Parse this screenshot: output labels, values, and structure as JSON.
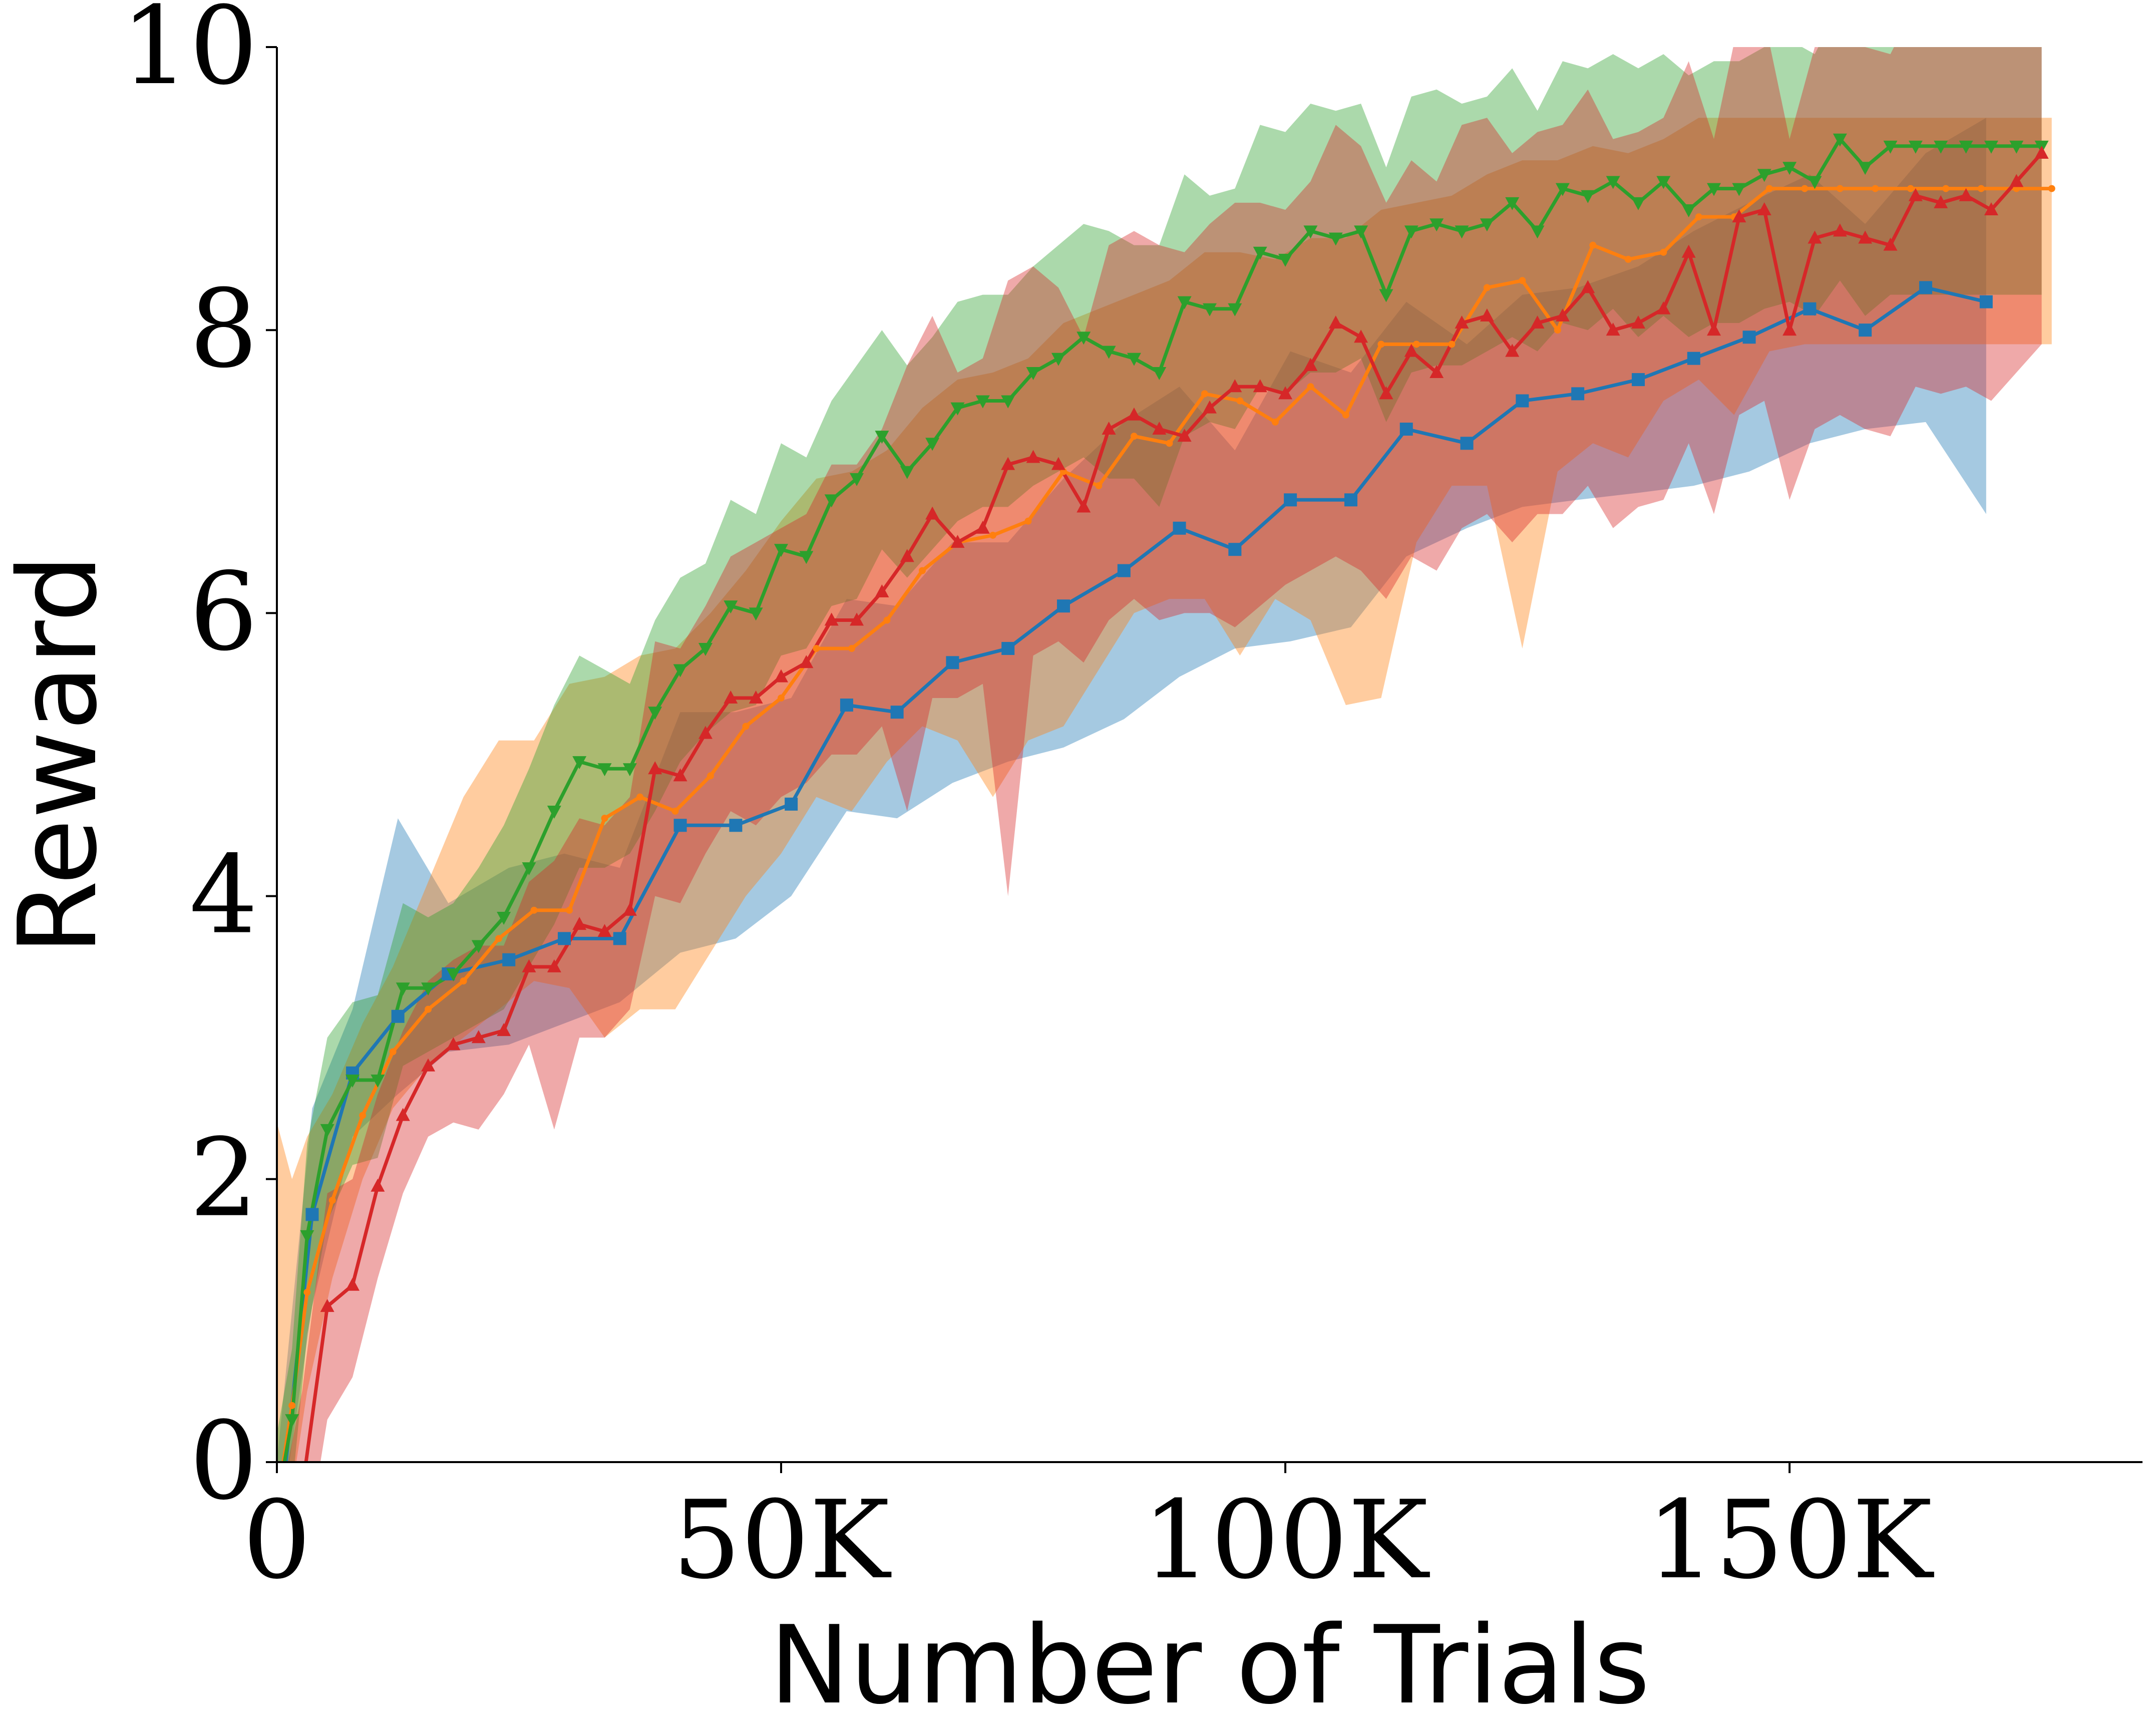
{
  "chart_data": {
    "type": "line",
    "title": "",
    "xlabel": "Number of Trials",
    "ylabel": "Reward",
    "xlim": [
      0,
      185000
    ],
    "ylim": [
      0,
      10
    ],
    "xticks": [
      0,
      50000,
      100000,
      150000
    ],
    "xtick_labels": [
      "0",
      "50K",
      "100K",
      "150K"
    ],
    "yticks": [
      0,
      2,
      4,
      6,
      8,
      10
    ],
    "ytick_labels": [
      "0",
      "2",
      "4",
      "6",
      "8",
      "10"
    ],
    "grid": false,
    "legend": "none",
    "series": [
      {
        "color": "#1f77b4",
        "marker": "square",
        "x": [
          0,
          3500,
          7500,
          12000,
          17000,
          23000,
          28500,
          34000,
          40000,
          45500,
          51000,
          56500,
          61500,
          67000,
          72500,
          78000,
          84000,
          89500,
          95000,
          100500,
          106500,
          112000,
          118000,
          123500,
          129000,
          135000,
          140500,
          146000,
          152000,
          157500,
          163500,
          169500
        ],
        "y": [
          -0.6,
          1.75,
          2.75,
          3.15,
          3.45,
          3.55,
          3.7,
          3.7,
          4.5,
          4.5,
          4.65,
          5.35,
          5.3,
          5.65,
          5.75,
          6.05,
          6.3,
          6.6,
          6.45,
          6.8,
          6.8,
          7.3,
          7.2,
          7.5,
          7.55,
          7.65,
          7.8,
          7.95,
          8.15,
          8.0,
          8.3,
          8.2
        ],
        "lower": [
          -0.6,
          1.1,
          2.3,
          2.6,
          2.9,
          2.95,
          3.1,
          3.25,
          3.6,
          3.7,
          4.0,
          4.6,
          4.55,
          4.8,
          4.95,
          5.05,
          5.25,
          5.55,
          5.75,
          5.8,
          5.9,
          6.4,
          6.6,
          6.75,
          6.8,
          6.85,
          6.9,
          7.0,
          7.2,
          7.3,
          7.35,
          6.7
        ],
        "upper": [
          0.0,
          2.5,
          3.2,
          4.55,
          3.95,
          4.2,
          4.3,
          4.2,
          5.3,
          5.3,
          5.4,
          6.1,
          6.05,
          6.5,
          6.5,
          6.95,
          7.35,
          7.6,
          7.15,
          7.85,
          7.7,
          8.2,
          7.9,
          8.25,
          8.3,
          8.45,
          8.7,
          8.9,
          9.1,
          8.75,
          9.25,
          9.5
        ]
      },
      {
        "color": "#ff7f0e",
        "marker": "circle",
        "x": [
          0,
          1500,
          3000,
          5500,
          8500,
          11500,
          15000,
          18500,
          22000,
          25500,
          29000,
          32500,
          36000,
          39500,
          43000,
          46500,
          50000,
          53500,
          57000,
          60500,
          64000,
          67500,
          71000,
          74500,
          78000,
          81500,
          85000,
          88500,
          92000,
          95500,
          99000,
          102500,
          106000,
          109500,
          113000,
          116500,
          120000,
          123500,
          127000,
          130500,
          134000,
          137500,
          141000,
          144500,
          148000,
          151500,
          155000,
          158500,
          162000,
          165500,
          169000,
          172500,
          176000
        ],
        "y": [
          -0.3,
          0.4,
          1.2,
          1.85,
          2.45,
          2.9,
          3.2,
          3.4,
          3.7,
          3.9,
          3.9,
          4.55,
          4.7,
          4.6,
          4.85,
          5.2,
          5.4,
          5.75,
          5.75,
          5.95,
          6.3,
          6.5,
          6.55,
          6.65,
          7.0,
          6.9,
          7.25,
          7.2,
          7.55,
          7.5,
          7.35,
          7.6,
          7.4,
          7.9,
          7.9,
          7.9,
          8.3,
          8.35,
          8.0,
          8.6,
          8.5,
          8.55,
          8.8,
          8.8,
          9.0,
          9.0,
          9.0,
          9.0,
          9.0,
          9.0,
          9.0,
          9.0,
          9.0
        ],
        "lower": [
          -0.8,
          -0.2,
          0.5,
          1.3,
          2.0,
          2.5,
          2.8,
          3.0,
          3.2,
          3.4,
          3.35,
          3.0,
          3.2,
          3.2,
          3.6,
          4.0,
          4.3,
          4.7,
          4.6,
          4.95,
          5.2,
          5.1,
          4.7,
          5.1,
          5.2,
          5.6,
          6.0,
          6.1,
          6.1,
          5.7,
          6.1,
          5.95,
          5.35,
          5.4,
          6.5,
          6.9,
          6.9,
          5.75,
          7.0,
          7.2,
          7.1,
          7.5,
          7.65,
          7.4,
          7.85,
          7.9,
          7.9,
          7.9,
          7.9,
          7.9,
          7.9,
          7.9,
          7.9
        ],
        "upper": [
          2.4,
          2.0,
          2.3,
          2.6,
          3.1,
          3.5,
          4.1,
          4.7,
          5.1,
          5.1,
          5.5,
          5.55,
          5.7,
          5.75,
          6.0,
          6.3,
          6.65,
          6.95,
          7.0,
          7.15,
          7.45,
          7.65,
          7.7,
          7.8,
          8.05,
          8.15,
          8.25,
          8.35,
          8.55,
          8.55,
          8.5,
          8.65,
          8.65,
          8.85,
          8.9,
          8.95,
          9.1,
          9.2,
          9.2,
          9.3,
          9.25,
          9.35,
          9.5,
          9.5,
          9.5,
          9.5,
          9.5,
          9.5,
          9.5,
          9.5,
          9.5,
          9.5,
          9.5
        ]
      },
      {
        "color": "#2ca02c",
        "marker": "triangle-down",
        "x": [
          0,
          1500,
          3000,
          5000,
          7500,
          10000,
          12500,
          15000,
          17500,
          20000,
          22500,
          25000,
          27500,
          30000,
          32500,
          35000,
          37500,
          40000,
          42500,
          45000,
          47500,
          50000,
          52500,
          55000,
          57500,
          60000,
          62500,
          65000,
          67500,
          70000,
          72500,
          75000,
          77500,
          80000,
          82500,
          85000,
          87500,
          90000,
          92500,
          95000,
          97500,
          100000,
          102500,
          105000,
          107500,
          110000,
          112500,
          115000,
          117500,
          120000,
          122500,
          125000,
          127500,
          130000,
          132500,
          135000,
          137500,
          140000,
          142500,
          145000,
          147500,
          150000,
          152500,
          155000,
          157500,
          160000,
          162500,
          165000,
          167500,
          170000,
          172500,
          175000
        ],
        "y": [
          -0.3,
          0.3,
          1.6,
          2.35,
          2.7,
          2.7,
          3.35,
          3.35,
          3.45,
          3.65,
          3.85,
          4.2,
          4.6,
          4.95,
          4.9,
          4.9,
          5.3,
          5.6,
          5.75,
          6.05,
          6.0,
          6.45,
          6.4,
          6.8,
          6.95,
          7.25,
          7.0,
          7.2,
          7.45,
          7.5,
          7.5,
          7.7,
          7.8,
          7.95,
          7.85,
          7.8,
          7.7,
          8.2,
          8.15,
          8.15,
          8.55,
          8.5,
          8.7,
          8.65,
          8.7,
          8.25,
          8.7,
          8.75,
          8.7,
          8.75,
          8.9,
          8.7,
          9.0,
          8.95,
          9.05,
          8.9,
          9.05,
          8.85,
          9.0,
          9.0,
          9.1,
          9.15,
          9.05,
          9.35,
          9.15,
          9.3,
          9.3,
          9.3,
          9.3,
          9.3,
          9.3,
          9.3
        ],
        "lower": [
          -0.5,
          -0.2,
          0.9,
          1.7,
          2.1,
          2.15,
          2.8,
          2.9,
          3.0,
          3.1,
          3.2,
          3.5,
          3.8,
          4.2,
          4.2,
          4.3,
          4.6,
          4.95,
          5.15,
          5.3,
          5.35,
          5.7,
          5.75,
          6.05,
          6.1,
          6.45,
          6.25,
          6.45,
          6.65,
          6.75,
          6.75,
          6.9,
          7.0,
          7.1,
          6.95,
          6.95,
          6.75,
          7.25,
          7.35,
          7.3,
          7.6,
          7.55,
          7.7,
          7.7,
          7.8,
          7.35,
          7.7,
          7.75,
          7.75,
          7.85,
          7.95,
          7.85,
          8.05,
          8.0,
          8.15,
          7.95,
          8.1,
          7.95,
          8.05,
          8.05,
          8.15,
          8.2,
          8.1,
          8.35,
          8.1,
          8.25,
          8.25,
          8.25,
          8.25,
          8.25,
          8.25,
          8.25
        ],
        "upper": [
          0.2,
          0.8,
          2.25,
          3.0,
          3.25,
          3.3,
          3.95,
          3.85,
          3.95,
          4.2,
          4.5,
          4.9,
          5.35,
          5.7,
          5.6,
          5.5,
          5.95,
          6.25,
          6.35,
          6.8,
          6.7,
          7.2,
          7.1,
          7.5,
          7.75,
          8.0,
          7.75,
          7.95,
          8.2,
          8.25,
          8.25,
          8.45,
          8.6,
          8.75,
          8.7,
          8.6,
          8.6,
          9.1,
          8.95,
          9.0,
          9.45,
          9.4,
          9.6,
          9.55,
          9.6,
          9.15,
          9.65,
          9.7,
          9.6,
          9.65,
          9.85,
          9.55,
          9.9,
          9.85,
          9.95,
          9.85,
          9.95,
          9.8,
          9.9,
          9.9,
          10.0,
          10.05,
          9.95,
          10.3,
          10.15,
          10.3,
          10.3,
          10.3,
          10.3,
          10.3,
          10.3,
          10.3
        ]
      },
      {
        "color": "#d62728",
        "marker": "triangle-up",
        "x": [
          0,
          2500,
          5000,
          7500,
          10000,
          12500,
          15000,
          17500,
          20000,
          22500,
          25000,
          27500,
          30000,
          32500,
          35000,
          37500,
          40000,
          42500,
          45000,
          47500,
          50000,
          52500,
          55000,
          57500,
          60000,
          62500,
          65000,
          67500,
          70000,
          72500,
          75000,
          77500,
          80000,
          82500,
          85000,
          87500,
          90000,
          92500,
          95000,
          97500,
          100000,
          102500,
          105000,
          107500,
          110000,
          112500,
          115000,
          117500,
          120000,
          122500,
          125000,
          127500,
          130000,
          132500,
          135000,
          137500,
          140000,
          142500,
          145000,
          147500,
          150000,
          152500,
          155000,
          157500,
          160000,
          162500,
          165000,
          167500,
          170000,
          172500,
          175000
        ],
        "y": [
          -1.0,
          -0.2,
          1.1,
          1.25,
          1.95,
          2.45,
          2.8,
          2.95,
          3.0,
          3.05,
          3.5,
          3.5,
          3.8,
          3.75,
          3.9,
          4.9,
          4.85,
          5.15,
          5.4,
          5.4,
          5.55,
          5.65,
          5.95,
          5.95,
          6.15,
          6.4,
          6.7,
          6.5,
          6.6,
          7.05,
          7.1,
          7.05,
          6.75,
          7.3,
          7.4,
          7.3,
          7.25,
          7.45,
          7.6,
          7.6,
          7.55,
          7.75,
          8.05,
          7.95,
          7.55,
          7.85,
          7.7,
          8.05,
          8.1,
          7.85,
          8.05,
          8.1,
          8.3,
          8.0,
          8.05,
          8.15,
          8.55,
          8.0,
          8.8,
          8.85,
          8.0,
          8.65,
          8.7,
          8.65,
          8.6,
          8.95,
          8.9,
          8.95,
          8.85,
          9.05,
          9.25
        ],
        "lower": [
          -1.5,
          -0.8,
          0.3,
          0.6,
          1.3,
          1.9,
          2.3,
          2.4,
          2.35,
          2.6,
          2.95,
          2.35,
          3.0,
          3.0,
          3.2,
          4.0,
          3.95,
          4.3,
          4.6,
          4.5,
          4.7,
          4.8,
          5.0,
          5.0,
          5.2,
          4.6,
          5.4,
          5.4,
          5.5,
          4.0,
          5.7,
          5.8,
          5.65,
          5.95,
          6.1,
          5.95,
          6.0,
          6.0,
          5.9,
          6.05,
          6.2,
          6.3,
          6.4,
          6.3,
          6.1,
          6.4,
          6.3,
          6.6,
          6.7,
          6.5,
          6.7,
          6.7,
          6.9,
          6.6,
          6.75,
          6.8,
          7.2,
          6.7,
          7.4,
          7.5,
          6.8,
          7.3,
          7.4,
          7.3,
          7.25,
          7.6,
          7.55,
          7.6,
          7.5,
          7.7,
          7.9
        ],
        "upper": [
          -0.4,
          0.5,
          1.9,
          2.0,
          2.6,
          3.05,
          3.4,
          3.55,
          3.65,
          3.65,
          4.1,
          4.25,
          4.55,
          4.5,
          4.7,
          5.8,
          5.75,
          6.05,
          6.4,
          6.5,
          6.6,
          6.7,
          7.05,
          7.05,
          7.3,
          7.75,
          8.1,
          7.7,
          7.8,
          8.35,
          8.45,
          8.3,
          7.95,
          8.6,
          8.7,
          8.6,
          8.55,
          8.75,
          8.9,
          8.9,
          8.85,
          9.05,
          9.45,
          9.3,
          8.9,
          9.2,
          9.05,
          9.45,
          9.5,
          9.25,
          9.4,
          9.45,
          9.7,
          9.35,
          9.4,
          9.5,
          9.9,
          9.35,
          10.2,
          10.2,
          9.35,
          10.0,
          10.05,
          10.0,
          9.95,
          10.3,
          10.25,
          10.3,
          10.2,
          10.4,
          10.6
        ]
      }
    ]
  }
}
